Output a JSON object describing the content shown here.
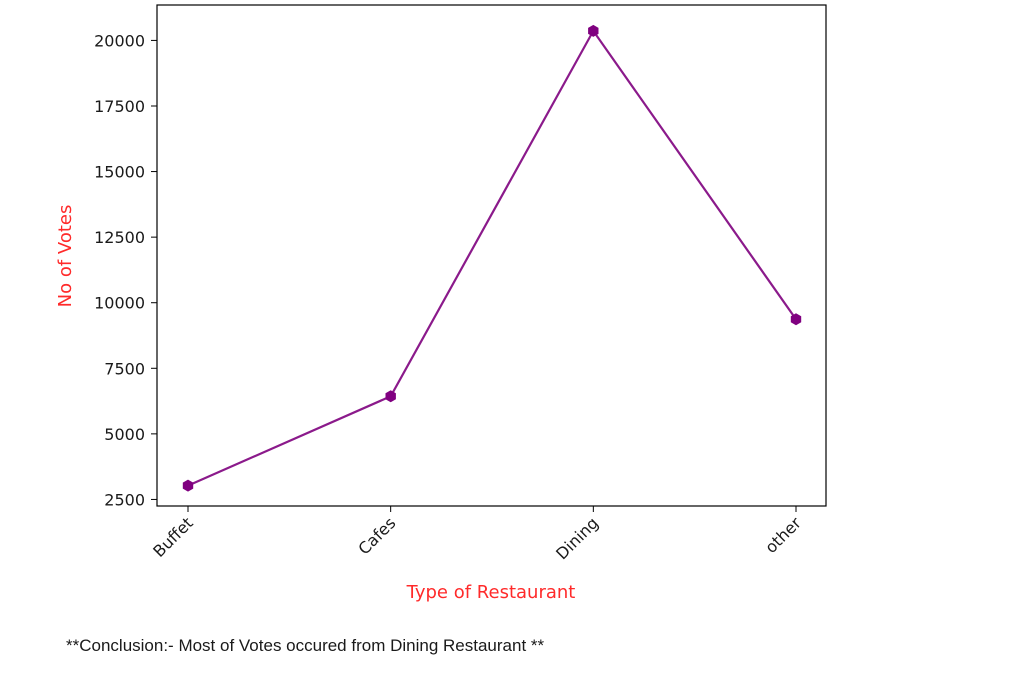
{
  "chart_data": {
    "type": "line",
    "categories": [
      "Buffet",
      "Cafes",
      "Dining",
      "other"
    ],
    "values": [
      3028,
      6434,
      20363,
      9367
    ],
    "xlabel": "Type of Restaurant",
    "ylabel": "No of Votes",
    "ylim": [
      2250,
      21350
    ],
    "yticks": [
      2500,
      5000,
      7500,
      10000,
      12500,
      15000,
      17500,
      20000
    ],
    "ytick_labels": [
      "2500",
      "5000",
      "7500",
      "10000",
      "12500",
      "15000",
      "17500",
      "20000"
    ],
    "xtick_rotation_deg": 45,
    "grid": false,
    "legend": "none",
    "marker": "hexagon",
    "colors": {
      "line": "#8b1a8b",
      "marker": "#800080",
      "axis_label": "#ff2a2a",
      "axes": "#000000"
    }
  },
  "note": {
    "text": "**Conclusion:- Most of Votes occured from Dining Restaurant **"
  }
}
